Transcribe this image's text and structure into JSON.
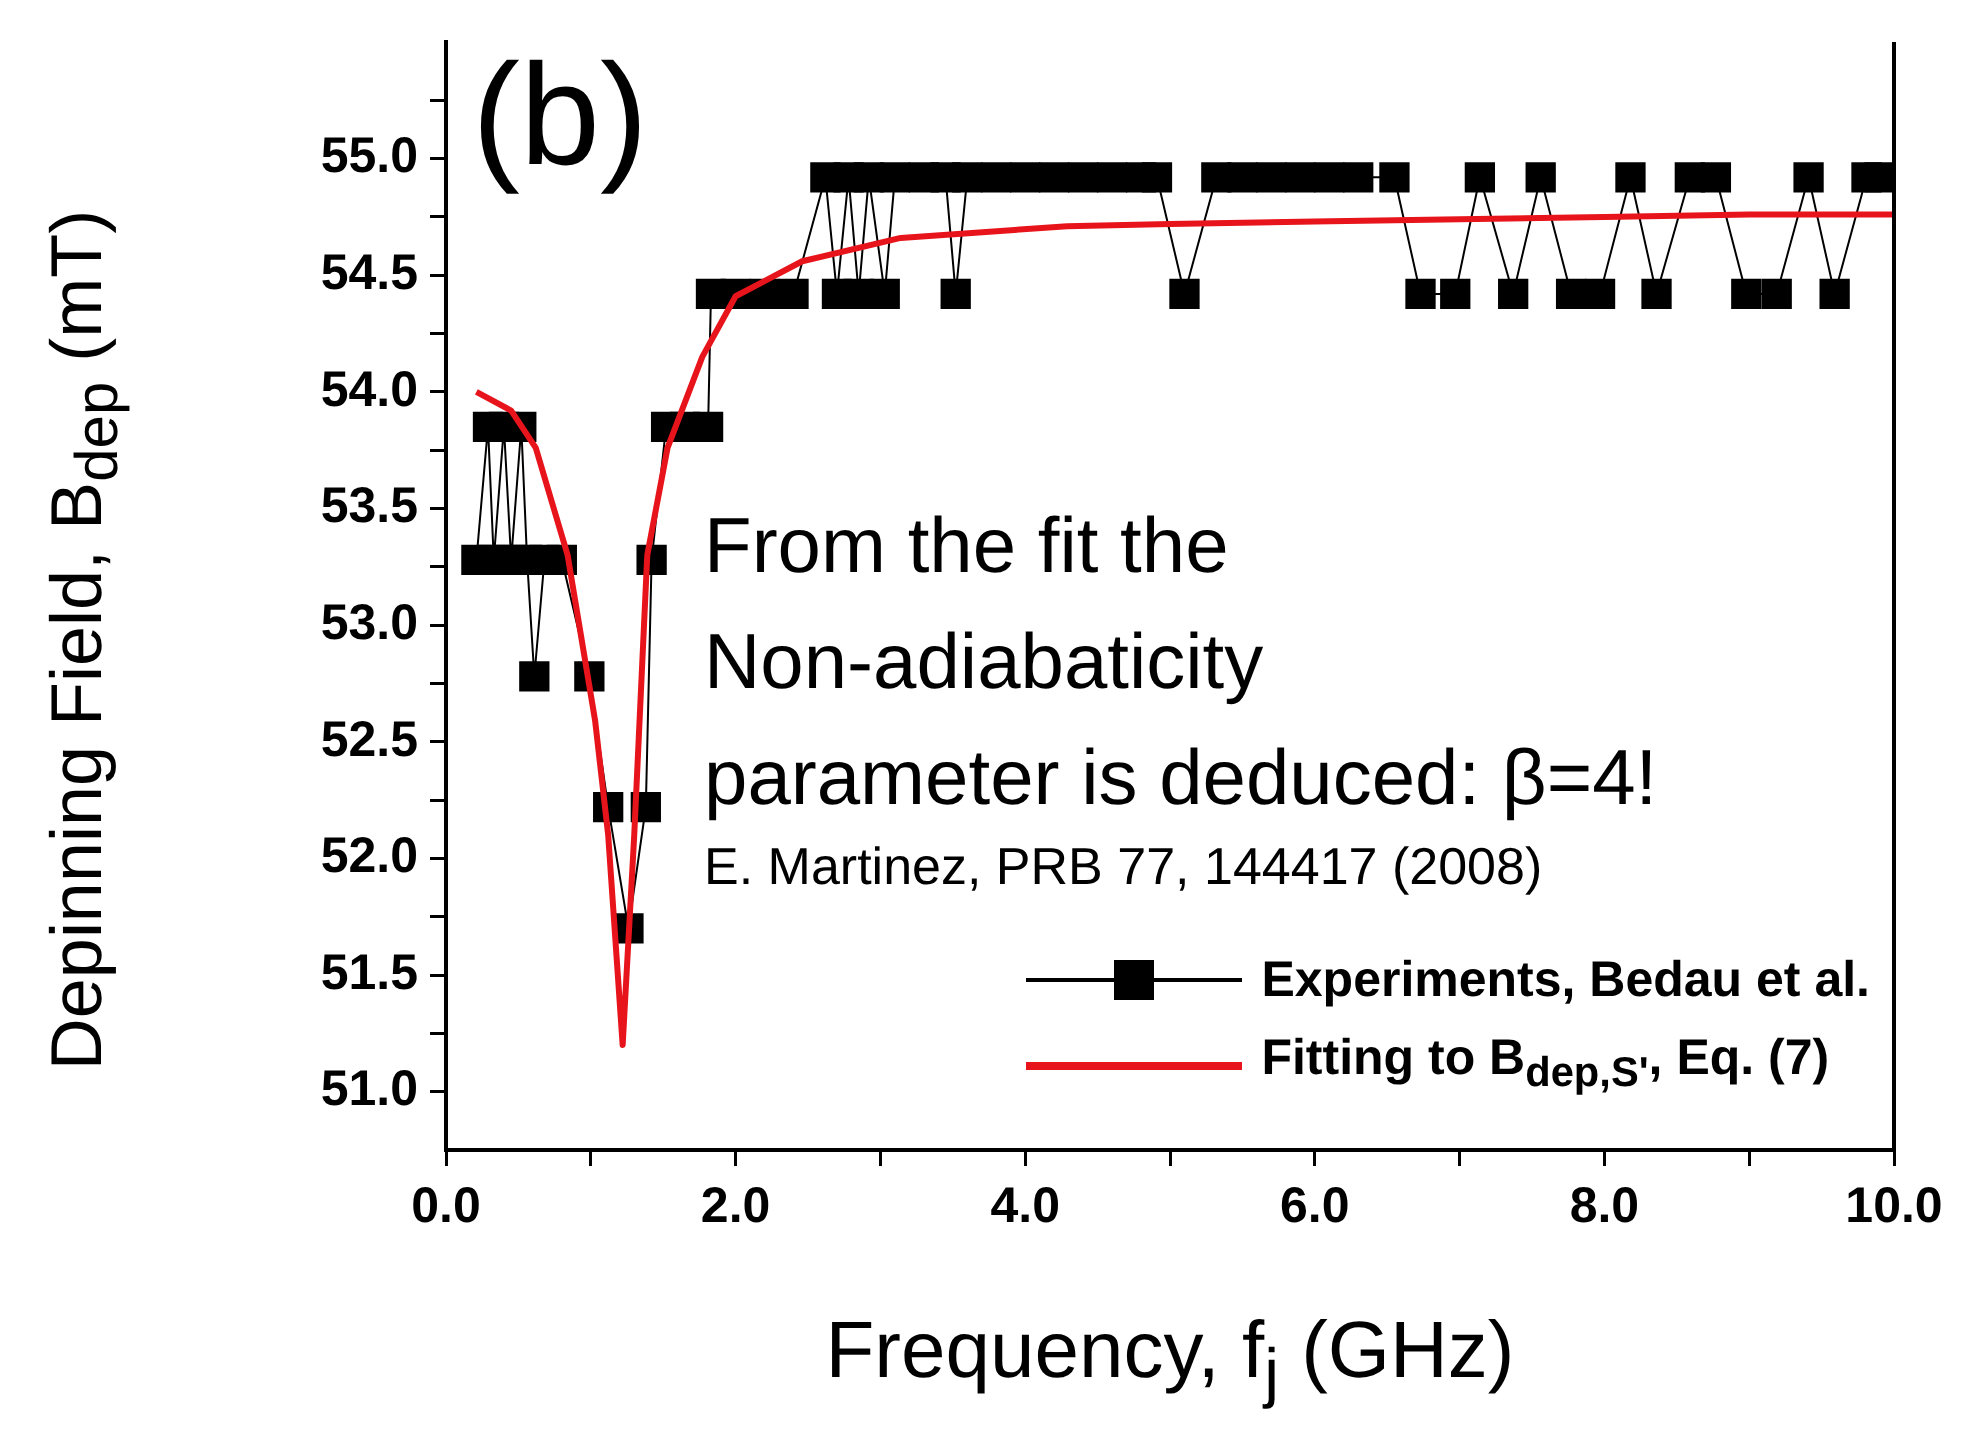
{
  "chart_data": {
    "type": "line",
    "xlabel": "Frequency, f$_{j}$ (GHz)",
    "ylabel": "Depinning Field, B$_{dep}$ (mT)",
    "annotations": [
      "(b)",
      "From the fit the\nNon-adiabaticity\nparameter is deduced: β=4!",
      "E. Martinez, PRB 77, 144417 (2008)"
    ],
    "xlim": [
      0,
      10
    ],
    "ylim": [
      50.75,
      55.5
    ],
    "xticks": [
      {
        "value": 0,
        "label": "0.0"
      },
      {
        "value": 1,
        "label": null
      },
      {
        "value": 2,
        "label": "2.0"
      },
      {
        "value": 3,
        "label": null
      },
      {
        "value": 4,
        "label": "4.0"
      },
      {
        "value": 5,
        "label": null
      },
      {
        "value": 6,
        "label": "6.0"
      },
      {
        "value": 7,
        "label": null
      },
      {
        "value": 8,
        "label": "8.0"
      },
      {
        "value": 9,
        "label": null
      },
      {
        "value": 10,
        "label": "10.0"
      }
    ],
    "yticks": [
      {
        "value": 51,
        "label": "51.0"
      },
      {
        "value": 51.25,
        "label": null
      },
      {
        "value": 51.5,
        "label": "51.5"
      },
      {
        "value": 51.75,
        "label": null
      },
      {
        "value": 52,
        "label": "52.0"
      },
      {
        "value": 52.25,
        "label": null
      },
      {
        "value": 52.5,
        "label": "52.5"
      },
      {
        "value": 52.75,
        "label": null
      },
      {
        "value": 53,
        "label": "53.0"
      },
      {
        "value": 53.25,
        "label": null
      },
      {
        "value": 53.5,
        "label": "53.5"
      },
      {
        "value": 53.75,
        "label": null
      },
      {
        "value": 54,
        "label": "54.0"
      },
      {
        "value": 54.25,
        "label": null
      },
      {
        "value": 54.5,
        "label": "54.5"
      },
      {
        "value": 54.75,
        "label": null
      },
      {
        "value": 55,
        "label": "55.0"
      },
      {
        "value": 55.25,
        "label": null
      }
    ],
    "grid": false,
    "legend": "bottom right",
    "series": [
      {
        "name": "Experiments, Bedau et al.",
        "type": "line",
        "color": "#000000",
        "marker": "square",
        "line_style": "solid",
        "x": [
          0.21,
          0.29,
          0.33,
          0.4,
          0.45,
          0.52,
          0.56,
          0.61,
          0.68,
          0.8,
          0.99,
          1.12,
          1.26,
          1.38,
          1.42,
          1.52,
          1.65,
          1.81,
          1.83,
          2.0,
          2.2,
          2.4,
          2.62,
          2.7,
          2.78,
          2.85,
          2.92,
          3.03,
          3.1,
          3.3,
          3.45,
          3.52,
          3.6,
          3.8,
          4.0,
          4.2,
          4.4,
          4.6,
          4.8,
          4.91,
          5.1,
          5.32,
          5.5,
          5.7,
          5.9,
          6.1,
          6.3,
          6.55,
          6.73,
          6.97,
          7.14,
          7.37,
          7.56,
          7.77,
          7.97,
          8.18,
          8.36,
          8.59,
          8.77,
          8.98,
          9.19,
          9.41,
          9.59,
          9.81,
          9.9
        ],
        "values": [
          53.28,
          53.85,
          53.28,
          53.85,
          53.28,
          53.85,
          53.28,
          52.78,
          53.28,
          53.28,
          52.78,
          52.22,
          51.7,
          52.22,
          53.28,
          53.85,
          53.85,
          53.85,
          54.42,
          54.42,
          54.42,
          54.42,
          54.92,
          54.42,
          54.92,
          54.42,
          54.92,
          54.42,
          54.92,
          54.92,
          54.92,
          54.42,
          54.92,
          54.92,
          54.92,
          54.92,
          54.92,
          54.92,
          54.92,
          54.92,
          54.42,
          54.92,
          54.92,
          54.92,
          54.92,
          54.92,
          54.92,
          54.92,
          54.42,
          54.42,
          54.92,
          54.42,
          54.92,
          54.42,
          54.42,
          54.92,
          54.42,
          54.92,
          54.92,
          54.42,
          54.42,
          54.92,
          54.42,
          54.92,
          54.92
        ]
      },
      {
        "name": "Fitting to B$_{dep,S'}$, Eq. (7)",
        "type": "line",
        "color": "#e8141b",
        "marker": "none",
        "line_style": "solid",
        "x": [
          0.21,
          0.45,
          0.62,
          0.84,
          1.03,
          1.12,
          1.22,
          1.3,
          1.39,
          1.53,
          1.77,
          2.0,
          2.46,
          3.14,
          4.29,
          5,
          6,
          7,
          8,
          9,
          10
        ],
        "values": [
          54.0,
          53.92,
          53.76,
          53.3,
          52.59,
          52.1,
          51.2,
          52.1,
          53.3,
          53.76,
          54.15,
          54.41,
          54.56,
          54.66,
          54.71,
          54.72,
          54.73,
          54.74,
          54.75,
          54.76,
          54.76
        ]
      }
    ]
  }
}
